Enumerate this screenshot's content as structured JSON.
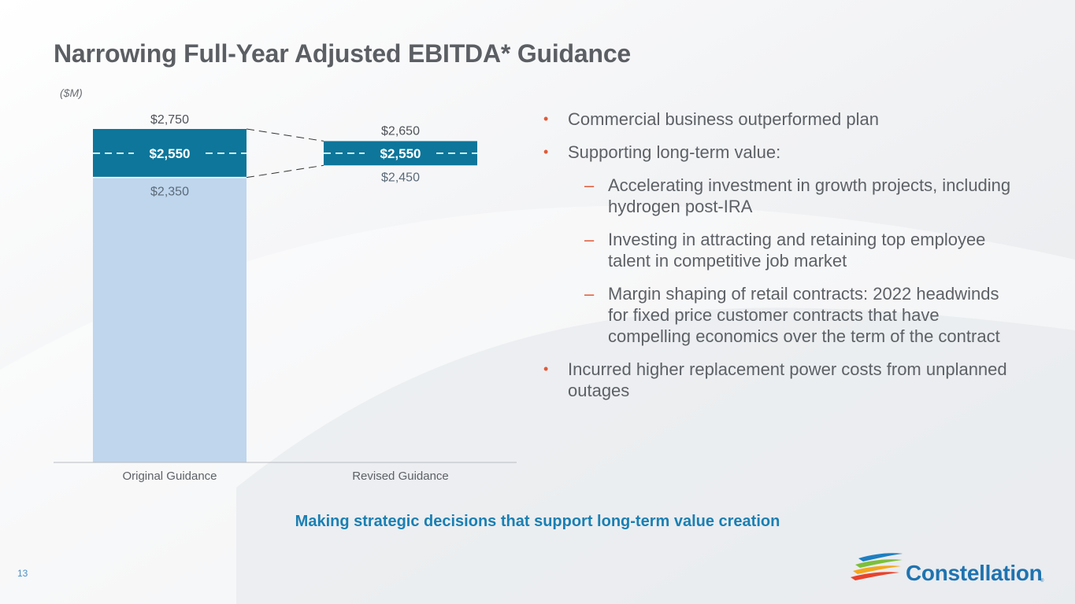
{
  "title": "Narrowing Full-Year Adjusted EBITDA* Guidance",
  "unit_label": "($M)",
  "colors": {
    "range_bar": "#0d769a",
    "base_bar": "#bfd6ed",
    "bullet": "#e05a37",
    "tagline": "#1a7fb3",
    "title": "#5b5e63"
  },
  "chart_data": {
    "type": "bar",
    "ylim": [
      0,
      2750
    ],
    "categories": [
      "Original Guidance",
      "Revised Guidance"
    ],
    "series": [
      {
        "name": "",
        "values": [
          2350,
          2450
        ],
        "labels": [
          "$2,350",
          "$2,450"
        ]
      },
      {
        "name": "",
        "values": [
          2750,
          2650
        ],
        "labels": [
          "$2,750",
          "$2,650"
        ]
      },
      {
        "name": "",
        "values": [
          2550,
          2550
        ],
        "labels": [
          "$2,550",
          "$2,550"
        ]
      }
    ],
    "grid": false
  },
  "bullets": [
    {
      "level": 1,
      "text": "Commercial business outperformed plan"
    },
    {
      "level": 1,
      "text": "Supporting long-term value:"
    },
    {
      "level": 2,
      "text": "Accelerating investment in growth projects, including hydrogen post-IRA"
    },
    {
      "level": 2,
      "text": "Investing in attracting and retaining top employee talent in competitive job market"
    },
    {
      "level": 2,
      "text": "Margin shaping of retail contracts: 2022 headwinds for fixed price customer contracts that have compelling economics over the term of the contract"
    },
    {
      "level": 1,
      "text": "Incurred higher replacement power costs from unplanned outages"
    }
  ],
  "tagline": "Making strategic decisions that support long-term value creation",
  "page_number": "13",
  "logo": {
    "icon": "constellation-swoosh-icon",
    "text": "Constellation",
    "mark": "®"
  }
}
